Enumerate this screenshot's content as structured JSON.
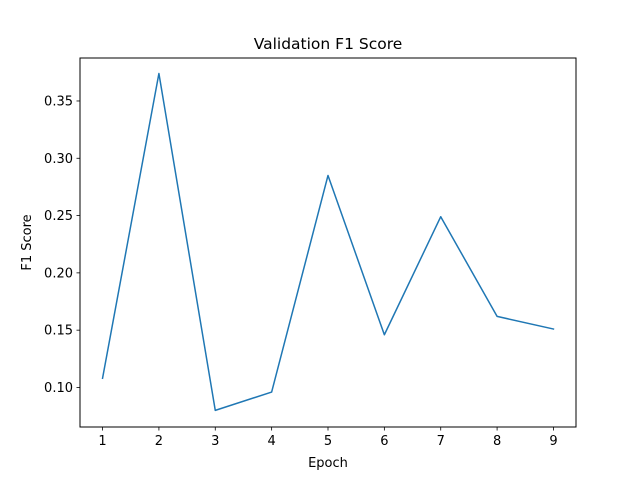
{
  "chart_data": {
    "type": "line",
    "title": "Validation F1 Score",
    "xlabel": "Epoch",
    "ylabel": "F1 Score",
    "x": [
      1,
      2,
      3,
      4,
      5,
      6,
      7,
      8,
      9
    ],
    "series": [
      {
        "values": [
          0.108,
          0.374,
          0.08,
          0.096,
          0.285,
          0.146,
          0.249,
          0.162,
          0.151
        ],
        "color": "#1f77b4"
      }
    ],
    "xlim": [
      0.6,
      9.4
    ],
    "ylim": [
      0.0655,
      0.3875
    ],
    "xticks": [
      1,
      2,
      3,
      4,
      5,
      6,
      7,
      8,
      9
    ],
    "xtick_labels": [
      "1",
      "2",
      "3",
      "4",
      "5",
      "6",
      "7",
      "8",
      "9"
    ],
    "yticks": [
      0.1,
      0.15,
      0.2,
      0.25,
      0.3,
      0.35
    ],
    "ytick_labels": [
      "0.10",
      "0.15",
      "0.20",
      "0.25",
      "0.30",
      "0.35"
    ],
    "grid": false,
    "legend": false
  }
}
